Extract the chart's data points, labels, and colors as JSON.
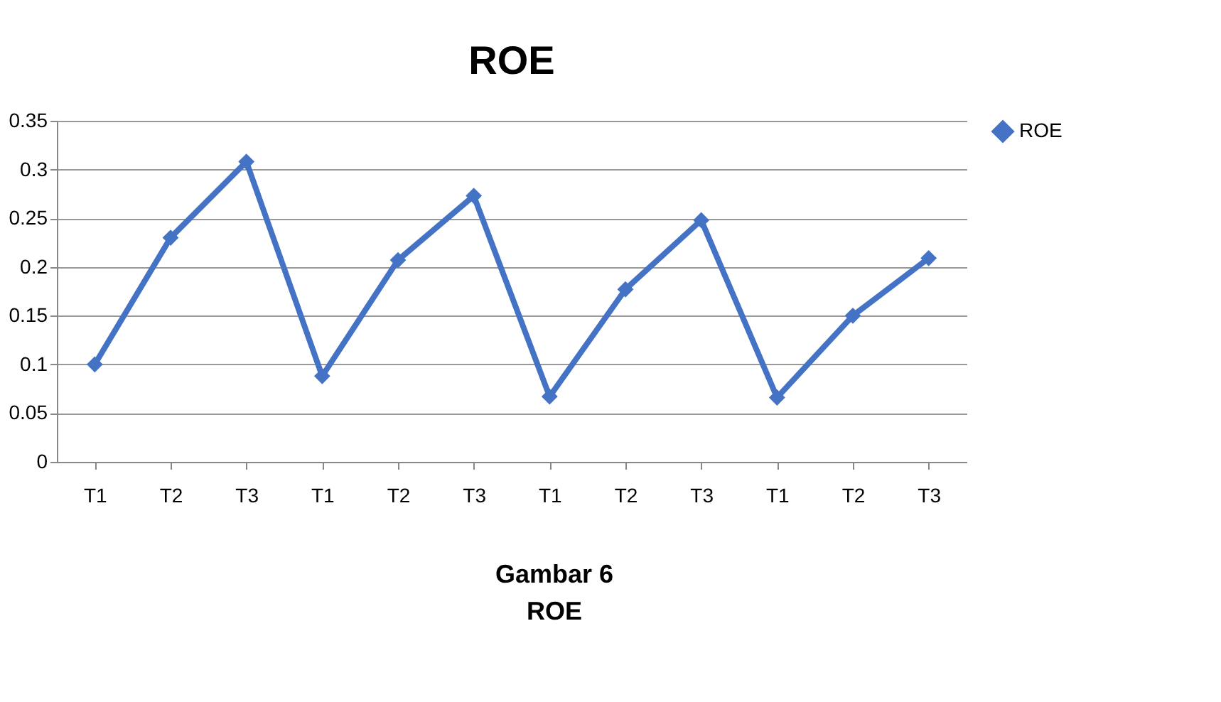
{
  "chart_data": {
    "type": "line",
    "title": "ROE",
    "categories": [
      "T1",
      "T2",
      "T3",
      "T1",
      "T2",
      "T3",
      "T1",
      "T2",
      "T3",
      "T1",
      "T2",
      "T3"
    ],
    "series": [
      {
        "name": "ROE",
        "color": "#4472c4",
        "values": [
          0.1,
          0.23,
          0.308,
          0.088,
          0.207,
          0.273,
          0.067,
          0.177,
          0.248,
          0.066,
          0.15,
          0.209
        ]
      }
    ],
    "ylim": [
      0,
      0.35
    ],
    "yticks": [
      0,
      0.05,
      0.1,
      0.15,
      0.2,
      0.25,
      0.3,
      0.35
    ],
    "grid": "y",
    "legend": "right",
    "marker": "diamond",
    "line_style": "solid",
    "annotations": [
      "Gambar 6",
      "ROE"
    ]
  }
}
